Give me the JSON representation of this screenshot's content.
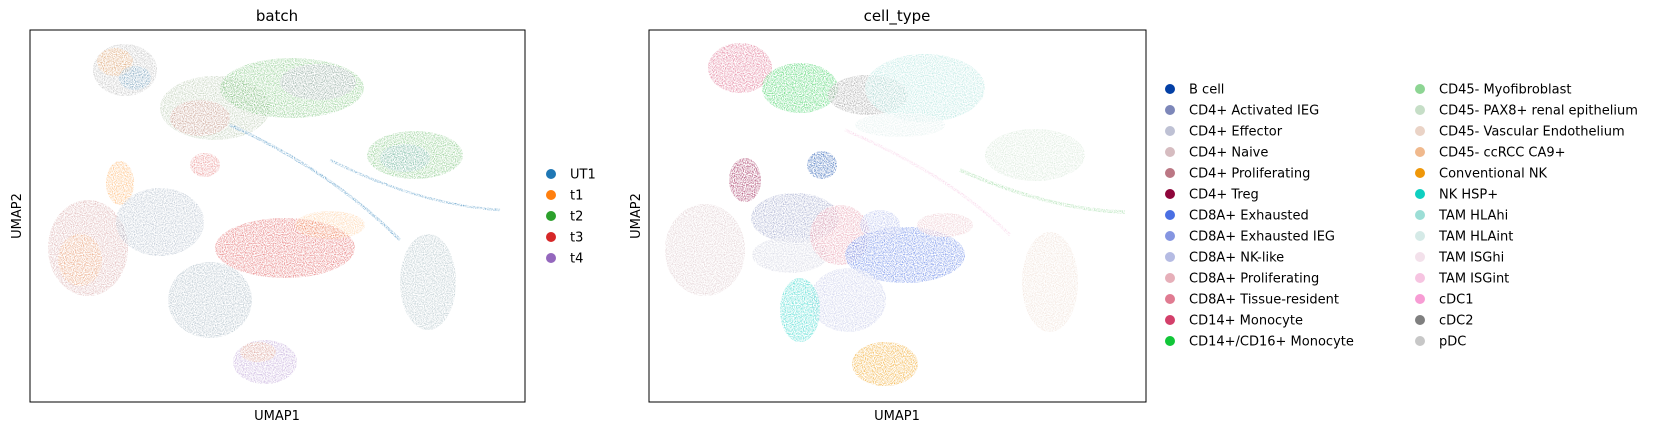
{
  "chart_data": [
    {
      "type": "scatter",
      "title": "batch",
      "xlabel": "UMAP1",
      "ylabel": "UMAP2",
      "grid": false,
      "ticks": false,
      "legend_placement": "right",
      "legend": [
        {
          "label": "UT1",
          "color": "#1f77b4"
        },
        {
          "label": "t1",
          "color": "#ff7f0e"
        },
        {
          "label": "t2",
          "color": "#2ca02c"
        },
        {
          "label": "t3",
          "color": "#d62728"
        },
        {
          "label": "t4",
          "color": "#9467bd"
        }
      ]
    },
    {
      "type": "scatter",
      "title": "cell_type",
      "xlabel": "UMAP1",
      "ylabel": "UMAP2",
      "grid": false,
      "ticks": false,
      "legend_placement": "right",
      "legend": [
        {
          "label": "B cell",
          "color": "#023fa5"
        },
        {
          "label": "CD4+ Activated IEG",
          "color": "#7d87b9"
        },
        {
          "label": "CD4+ Effector",
          "color": "#bec1d4"
        },
        {
          "label": "CD4+ Naive",
          "color": "#d6bcc0"
        },
        {
          "label": "CD4+ Proliferating",
          "color": "#bb7784"
        },
        {
          "label": "CD4+ Treg",
          "color": "#8e063b"
        },
        {
          "label": "CD8A+ Exhausted",
          "color": "#4a6fe3"
        },
        {
          "label": "CD8A+ Exhausted IEG",
          "color": "#8595e1"
        },
        {
          "label": "CD8A+ NK-like",
          "color": "#b5bbe3"
        },
        {
          "label": "CD8A+ Proliferating",
          "color": "#e6afb9"
        },
        {
          "label": "CD8A+ Tissue-resident",
          "color": "#e07b91"
        },
        {
          "label": "CD14+ Monocyte",
          "color": "#d33f6a"
        },
        {
          "label": "CD14+/CD16+ Monocyte",
          "color": "#11c638"
        },
        {
          "label": "CD45- Myofibroblast",
          "color": "#8dd593"
        },
        {
          "label": "CD45- PAX8+ renal epithelium",
          "color": "#c6dec7"
        },
        {
          "label": "CD45- Vascular Endothelium",
          "color": "#ead3c6"
        },
        {
          "label": "CD45- ccRCC CA9+",
          "color": "#f0b98d"
        },
        {
          "label": "Conventional NK",
          "color": "#ef9708"
        },
        {
          "label": "NK HSP+",
          "color": "#0fcfc0"
        },
        {
          "label": "TAM HLAhi",
          "color": "#9cded6"
        },
        {
          "label": "TAM HLAint",
          "color": "#d5eae7"
        },
        {
          "label": "TAM ISGhi",
          "color": "#f3e1eb"
        },
        {
          "label": "TAM ISGint",
          "color": "#f6c4e1"
        },
        {
          "label": "cDC1",
          "color": "#f79cd4"
        },
        {
          "label": "cDC2",
          "color": "#7f7f7f"
        },
        {
          "label": "pDC",
          "color": "#c7c7c7"
        }
      ]
    }
  ]
}
